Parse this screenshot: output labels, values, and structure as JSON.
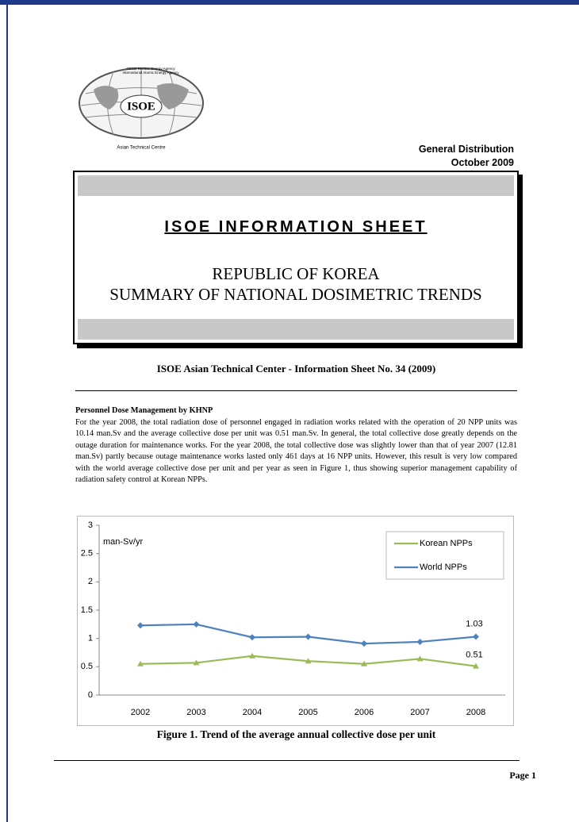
{
  "logo": {
    "line1": "OECD Nuclear Energy Agency",
    "line2": "International Atomic Energy Agency",
    "name": "ISOE",
    "centre": "Asian Technical Centre"
  },
  "header": {
    "distribution": "General Distribution",
    "date": "October 2009"
  },
  "title_box": {
    "title": "ISOE INFORMATION SHEET",
    "subtitle1": "REPUBLIC OF KOREA",
    "subtitle2": "SUMMARY OF NATIONAL DOSIMETRIC TRENDS"
  },
  "sheet_line": "ISOE Asian Technical Center - Information Sheet No. 34 (2009)",
  "section": {
    "heading": "Personnel Dose Management by KHNP",
    "body": "For the year 2008, the total radiation dose of personnel engaged in radiation works related with the operation of 20 NPP units was 10.14 man.Sv and the average collective dose per unit was 0.51 man.Sv. In general, the total collective dose greatly depends on the outage duration for maintenance works. For the year 2008, the total collective dose was slightly lower than that of year 2007 (12.81 man.Sv) partly because outage maintenance works lasted only 461 days at 16 NPP units. However, this result is very low compared with the world average collective dose per unit and per year as seen in Figure 1, thus showing superior management capability of radiation safety control at Korean NPPs."
  },
  "chart_data": {
    "type": "line",
    "ylabel": "man-Sv/yr",
    "categories": [
      "2002",
      "2003",
      "2004",
      "2005",
      "2006",
      "2007",
      "2008"
    ],
    "series": [
      {
        "name": "Korean NPPs",
        "color": "#9bbb59",
        "values": [
          0.55,
          0.57,
          0.69,
          0.6,
          0.55,
          0.64,
          0.51
        ],
        "value_labels": [
          null,
          null,
          null,
          null,
          null,
          null,
          "0.51"
        ]
      },
      {
        "name": "World NPPs",
        "color": "#4f81bd",
        "values": [
          1.23,
          1.25,
          1.02,
          1.03,
          0.91,
          0.94,
          1.03
        ],
        "value_labels": [
          null,
          null,
          null,
          null,
          null,
          null,
          "1.03"
        ]
      }
    ],
    "ylim": [
      0,
      3
    ],
    "yticks": [
      0,
      0.5,
      1,
      1.5,
      2,
      2.5,
      3
    ],
    "legend": "upper right",
    "grid": false
  },
  "caption": "Figure 1. Trend of the average annual collective dose per unit",
  "footer": {
    "page": "Page 1"
  }
}
